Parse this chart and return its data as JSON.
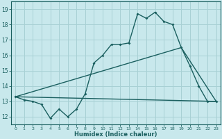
{
  "xlabel": "Humidex (Indice chaleur)",
  "bg_color": "#c8e8ec",
  "line_color": "#1a5f5f",
  "grid_color": "#a8d0d4",
  "xlim": [
    -0.5,
    23.5
  ],
  "ylim": [
    11.5,
    19.5
  ],
  "yticks": [
    12,
    13,
    14,
    15,
    16,
    17,
    18,
    19
  ],
  "xticks": [
    0,
    1,
    2,
    3,
    4,
    5,
    6,
    7,
    8,
    9,
    10,
    11,
    12,
    13,
    14,
    15,
    16,
    17,
    18,
    19,
    20,
    21,
    22,
    23
  ],
  "line1_x": [
    0,
    1,
    2,
    3,
    4,
    5,
    6,
    7,
    8,
    9,
    10,
    11,
    12,
    13,
    14,
    15,
    16,
    17,
    18,
    19,
    20,
    21,
    22,
    23
  ],
  "line1_y": [
    13.3,
    13.1,
    13.0,
    12.8,
    11.9,
    12.5,
    12.0,
    12.5,
    13.5,
    15.5,
    16.0,
    16.7,
    16.7,
    16.8,
    18.7,
    18.4,
    18.8,
    18.2,
    18.0,
    16.5,
    15.3,
    14.0,
    13.0,
    13.0
  ],
  "line2_x": [
    0,
    23
  ],
  "line2_y": [
    13.3,
    13.0
  ],
  "line3_x": [
    0,
    19,
    23
  ],
  "line3_y": [
    13.3,
    16.5,
    13.0
  ]
}
